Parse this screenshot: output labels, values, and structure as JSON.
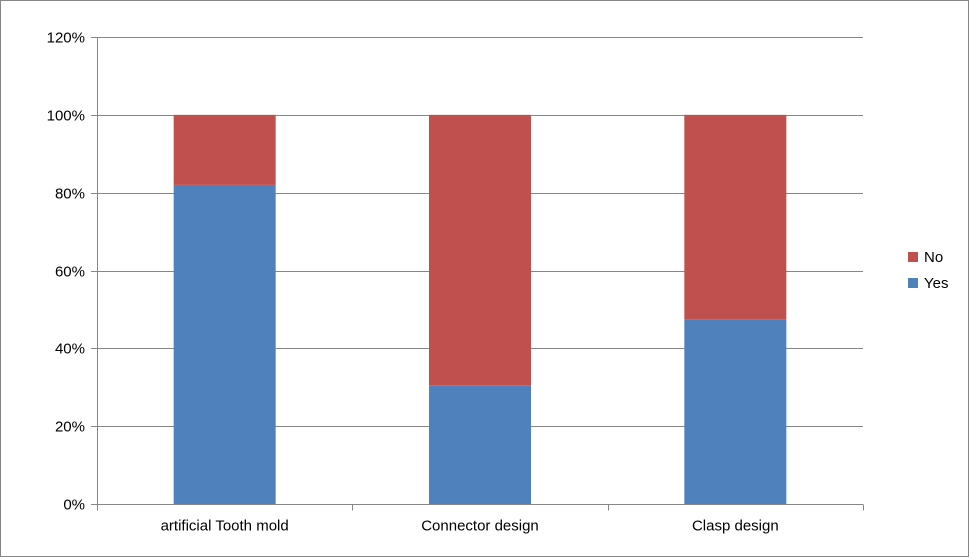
{
  "chart_data": {
    "type": "bar",
    "stacked": true,
    "categories": [
      "artificial Tooth mold",
      "Connector design",
      "Clasp design"
    ],
    "series": [
      {
        "name": "Yes",
        "values": [
          82,
          30.5,
          47.5
        ],
        "color": "#4F81BD"
      },
      {
        "name": "No",
        "values": [
          18,
          69.5,
          52.5
        ],
        "color": "#C0504D"
      }
    ],
    "y_unit": "%",
    "ylim": [
      0,
      120
    ],
    "yticks": [
      0,
      20,
      40,
      60,
      80,
      100,
      120
    ],
    "ytick_labels": [
      "0%",
      "20%",
      "40%",
      "60%",
      "80%",
      "100%",
      "120%"
    ],
    "grid": true,
    "legend": {
      "position": "right",
      "entries": [
        "No",
        "Yes"
      ]
    },
    "title": "",
    "xlabel": "",
    "ylabel": ""
  }
}
